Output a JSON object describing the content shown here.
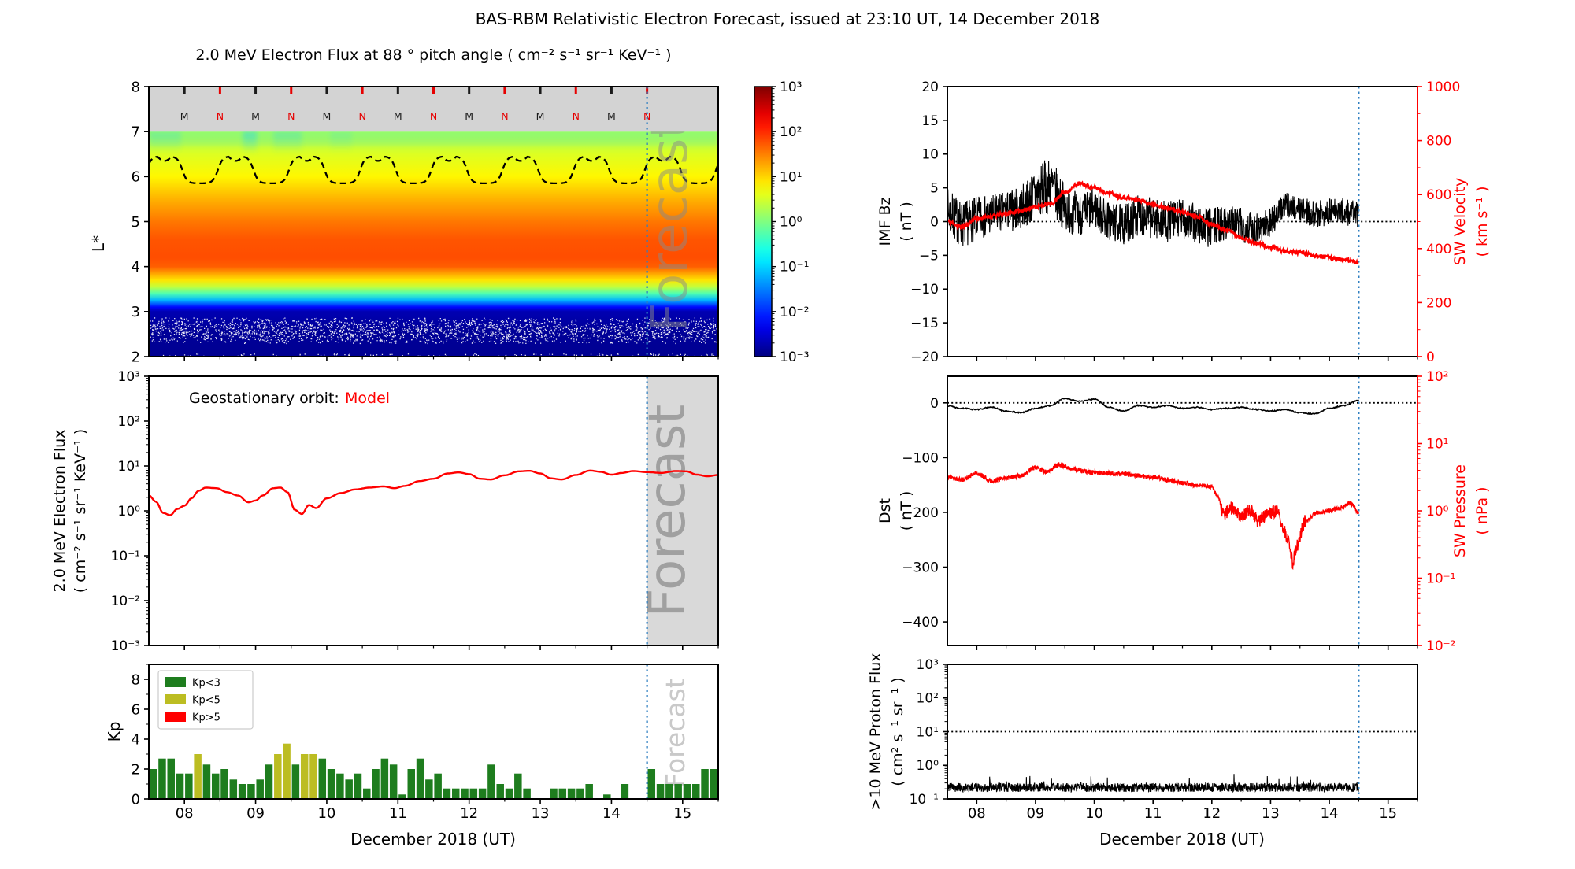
{
  "title": "BAS-RBM Relativistic Electron Forecast, issued at 23:10 UT, 14 December 2018",
  "watermark": "Forecast",
  "xaxis": {
    "label": "December 2018 (UT)",
    "tick_labels": [
      "08",
      "09",
      "10",
      "11",
      "12",
      "13",
      "14",
      "15"
    ],
    "tick_days": [
      8,
      9,
      10,
      11,
      12,
      13,
      14,
      15
    ],
    "range_days": [
      7.5,
      15.5
    ],
    "forecast_start_day": 14.5
  },
  "colors": {
    "model_red": "#ff0000",
    "forecast_line_blue": "#2f7fc1",
    "kp_green": "#1e7d1e",
    "kp_olive": "#bcbd22",
    "kp_red": "#ff0000",
    "gray_band": "#d3d3d3",
    "forecast_shade": "#d9d9d9",
    "midnight_black": "#1a1a1a",
    "noon_red": "#e60000"
  },
  "chart_data": [
    {
      "id": "spectrogram",
      "type": "heatmap",
      "title": "2.0 MeV Electron Flux at 88 ° pitch angle ( cm⁻² s⁻¹ sr⁻¹ KeV⁻¹ )",
      "ylabel": "L*",
      "ylim": [
        2,
        8
      ],
      "yticks": [
        2,
        3,
        4,
        5,
        6,
        7,
        8
      ],
      "colormap": "jet",
      "value_scale": "log10",
      "clim_log10": [
        -3,
        3
      ],
      "colorbar_tick_labels": [
        "10³",
        "10²",
        "10¹",
        "10⁰",
        "10⁻¹",
        "10⁻²",
        "10⁻³"
      ],
      "l_profile": {
        "L": [
          7.0,
          6.5,
          6.0,
          5.5,
          5.0,
          4.6,
          4.2,
          4.0,
          3.85,
          3.7,
          3.55,
          3.4,
          3.25,
          3.1,
          3.0,
          2.6,
          2.0
        ],
        "log10_flux": [
          0.2,
          0.55,
          0.8,
          1.2,
          1.55,
          1.75,
          1.8,
          1.7,
          1.3,
          0.9,
          0.4,
          -0.3,
          -1.2,
          -2.2,
          -2.7,
          -2.85,
          -2.9
        ]
      },
      "top_band": {
        "range_L": [
          7,
          8
        ],
        "midnight_label": "M",
        "noon_label": "N",
        "midnight_days": [
          8,
          9,
          10,
          11,
          12,
          13,
          14
        ],
        "noon_days": [
          8.5,
          9.5,
          10.5,
          11.5,
          12.5,
          13.5,
          14.5
        ]
      },
      "geo_orbit_dashed_line": {
        "mean_L": 6.15,
        "amplitude_L": 0.3,
        "period_days": 1.0,
        "peak_day_fraction": 0.72
      },
      "noise_speckle_band_L": [
        2.3,
        2.87
      ],
      "cyan_streaks": [
        {
          "day_start": 7.5,
          "day_end": 7.95,
          "strength": 0.3
        },
        {
          "day_start": 8.82,
          "day_end": 9.02,
          "strength": 0.55
        },
        {
          "day_start": 9.25,
          "day_end": 9.65,
          "strength": 0.33
        },
        {
          "day_start": 10.05,
          "day_end": 10.35,
          "strength": 0.18
        }
      ]
    },
    {
      "id": "geo_flux",
      "type": "line",
      "legend_prefix": "Geostationary orbit:",
      "legend_series": "Model",
      "series_color": "#ff0000",
      "ylabel_line1": "2.0 MeV Electron Flux",
      "ylabel_line2": "( cm⁻² s⁻¹ sr⁻¹ KeV⁻¹ )",
      "yscale": "log10",
      "ylim": [
        0.001,
        1000
      ],
      "ytick_labels": [
        "10³",
        "10²",
        "10¹",
        "10⁰",
        "10⁻¹",
        "10⁻²",
        "10⁻³"
      ],
      "x_days": [
        7.5,
        7.6,
        7.7,
        7.8,
        7.9,
        8.0,
        8.1,
        8.2,
        8.3,
        8.45,
        8.6,
        8.75,
        8.9,
        9.0,
        9.1,
        9.25,
        9.35,
        9.45,
        9.55,
        9.65,
        9.75,
        9.85,
        10.0,
        10.2,
        10.4,
        10.6,
        10.8,
        10.95,
        11.1,
        11.3,
        11.5,
        11.7,
        11.85,
        12.0,
        12.15,
        12.3,
        12.5,
        12.7,
        12.85,
        13.0,
        13.15,
        13.3,
        13.5,
        13.7,
        13.85,
        14.0,
        14.15,
        14.3,
        14.5,
        14.7,
        14.9,
        15.05,
        15.2,
        15.35,
        15.5
      ],
      "flux": [
        2.2,
        1.6,
        0.9,
        0.8,
        1.1,
        1.3,
        1.9,
        2.8,
        3.3,
        3.2,
        2.6,
        2.2,
        1.55,
        1.7,
        2.2,
        3.2,
        3.3,
        2.6,
        1.05,
        0.85,
        1.35,
        1.15,
        1.9,
        2.5,
        3.0,
        3.3,
        3.5,
        3.2,
        3.6,
        4.6,
        5.2,
        6.8,
        7.2,
        6.6,
        5.2,
        5.0,
        6.2,
        7.6,
        7.8,
        6.8,
        5.3,
        5.0,
        6.3,
        7.9,
        7.4,
        6.4,
        7.0,
        7.7,
        7.3,
        7.0,
        7.7,
        7.6,
        6.4,
        5.9,
        6.3
      ]
    },
    {
      "id": "kp",
      "type": "bar",
      "ylabel": "Kp",
      "ylim": [
        0,
        9
      ],
      "yticks": [
        0,
        2,
        4,
        6,
        8
      ],
      "ytick_labels": [
        "0",
        "2",
        "4",
        "6",
        "8"
      ],
      "legend": [
        {
          "label": "Kp<3",
          "color": "#1e7d1e"
        },
        {
          "label": "Kp<5",
          "color": "#bcbd22"
        },
        {
          "label": "Kp>5",
          "color": "#ff0000"
        }
      ],
      "t0_day": 7.5,
      "dt_days": 0.125,
      "kp": [
        2.0,
        2.7,
        2.7,
        1.7,
        1.7,
        3.0,
        2.3,
        1.7,
        2.0,
        1.3,
        1.0,
        1.0,
        1.3,
        2.3,
        3.0,
        3.7,
        2.3,
        3.0,
        3.0,
        2.7,
        2.0,
        1.7,
        1.3,
        1.7,
        0.7,
        2.0,
        2.7,
        2.3,
        0.3,
        2.0,
        2.7,
        1.3,
        1.7,
        0.7,
        0.7,
        0.7,
        0.7,
        0.7,
        2.3,
        1.0,
        0.7,
        1.7,
        0.7,
        0.0,
        0.0,
        0.7,
        0.7,
        0.7,
        0.7,
        1.0,
        0.0,
        0.3,
        0.0,
        1.0,
        0.0,
        0.0,
        2.0,
        1.0,
        1.0,
        1.0,
        1.0,
        1.0,
        2.0,
        2.0
      ]
    },
    {
      "id": "imf_bz_sw_velocity",
      "type": "line",
      "left_axis": {
        "label_line1": "IMF Bz",
        "label_line2": "( nT )",
        "lim": [
          -20,
          20
        ],
        "tick_values": [
          20,
          15,
          10,
          5,
          0,
          -5,
          -10,
          -15,
          -20
        ],
        "tick_labels": [
          "20",
          "15",
          "10",
          "5",
          "0",
          "−5",
          "−10",
          "−15",
          "−20"
        ],
        "color": "#000000"
      },
      "right_axis": {
        "label_line1": "SW Velocity",
        "label_line2": "( km s⁻¹ )",
        "lim": [
          0,
          1000
        ],
        "tick_values": [
          1000,
          800,
          600,
          400,
          200,
          0
        ],
        "tick_labels": [
          "1000",
          "800",
          "600",
          "400",
          "200",
          "0"
        ],
        "color": "#ff0000"
      },
      "hline_bz": 0,
      "observed_end_day": 14.5,
      "bz": {
        "t0": 7.5,
        "dt": 0.25,
        "mean": [
          1.5,
          -0.5,
          0.5,
          1.0,
          1.5,
          2.0,
          4.0,
          5.5,
          2.0,
          1.0,
          2.0,
          0.0,
          -0.5,
          1.0,
          0.5,
          0.0,
          0.5,
          -0.5,
          -1.0,
          0.0,
          -0.5,
          -1.0,
          0.0,
          2.5,
          2.0,
          1.0,
          1.5,
          1.5,
          1.0
        ],
        "noise_amp": [
          3.5,
          3.5,
          3.2,
          3.0,
          3.0,
          3.2,
          4.0,
          4.2,
          3.5,
          3.2,
          3.0,
          3.0,
          3.0,
          3.0,
          3.0,
          3.0,
          3.0,
          3.0,
          3.0,
          2.6,
          2.6,
          2.6,
          2.2,
          1.8,
          1.8,
          2.0,
          2.0,
          2.0,
          2.0
        ]
      },
      "velocity": {
        "t0": 7.5,
        "dt": 0.25,
        "mean": [
          500,
          480,
          510,
          520,
          530,
          540,
          555,
          565,
          610,
          640,
          625,
          605,
          590,
          580,
          565,
          550,
          535,
          520,
          490,
          470,
          440,
          420,
          405,
          390,
          385,
          375,
          368,
          358,
          350
        ],
        "noise_amp": 7
      }
    },
    {
      "id": "dst_sw_pressure",
      "type": "line",
      "left_axis": {
        "label_line1": "Dst",
        "label_line2": "( nT )",
        "lim": [
          48.6,
          -443
        ],
        "tick_values": [
          0,
          -100,
          -200,
          -300,
          -400
        ],
        "tick_labels": [
          "0",
          "−100",
          "−200",
          "−300",
          "−400"
        ],
        "color": "#000000"
      },
      "right_axis": {
        "label_line1": "SW Pressure",
        "label_line2": "( nPa )",
        "scale": "log10",
        "lim": [
          100,
          0.01
        ],
        "tick_labels": [
          "10²",
          "10¹",
          "10⁰",
          "10⁻¹",
          "10⁻²"
        ],
        "color": "#ff0000"
      },
      "hline_dst": 0,
      "observed_end_day": 14.5,
      "dst": {
        "t0": 7.5,
        "dt": 0.25,
        "mean": [
          -5,
          -10,
          -12,
          -8,
          -15,
          -18,
          -10,
          -5,
          8,
          3,
          7,
          -8,
          -15,
          -5,
          -8,
          -5,
          -10,
          -8,
          -12,
          -10,
          -8,
          -12,
          -15,
          -12,
          -18,
          -20,
          -10,
          -5,
          5
        ],
        "noise_amp": 1.3
      },
      "pressure_npa": {
        "t": [
          7.5,
          7.75,
          8.0,
          8.25,
          8.5,
          8.75,
          9.0,
          9.2,
          9.4,
          9.6,
          9.8,
          10.0,
          10.5,
          11.0,
          11.25,
          11.5,
          11.75,
          12.0,
          12.1,
          12.2,
          12.35,
          12.5,
          12.65,
          12.8,
          12.95,
          13.1,
          13.2,
          13.3,
          13.38,
          13.45,
          13.6,
          13.8,
          14.0,
          14.2,
          14.35,
          14.5
        ],
        "v": [
          3.2,
          2.9,
          3.6,
          2.8,
          3.1,
          3.3,
          4.3,
          3.8,
          4.8,
          4.2,
          3.9,
          3.7,
          3.5,
          3.2,
          2.9,
          2.6,
          2.4,
          2.3,
          1.6,
          0.9,
          1.1,
          0.8,
          1.0,
          0.7,
          0.9,
          1.0,
          0.6,
          0.35,
          0.17,
          0.3,
          0.7,
          0.95,
          1.0,
          1.1,
          1.3,
          0.95
        ],
        "log_noise_dec": 0.035,
        "log_noise_dec_active": 0.1,
        "active_window_days": [
          12.15,
          13.6
        ]
      }
    },
    {
      "id": "proton_flux",
      "type": "line",
      "ylabel_line1": ">10 MeV Proton Flux",
      "ylabel_line2": "( cm² s⁻¹ sr⁻¹ )",
      "yscale": "log10",
      "ylim": [
        0.1,
        1000
      ],
      "ytick_labels": [
        "10³",
        "10²",
        "10¹",
        "10⁰",
        "10⁻¹"
      ],
      "hline_flux": 10,
      "observed_end_day": 14.5,
      "series": {
        "baseline_flux": 0.22,
        "log_noise_dec": 0.13,
        "spike_log_boost": 0.28
      }
    }
  ]
}
